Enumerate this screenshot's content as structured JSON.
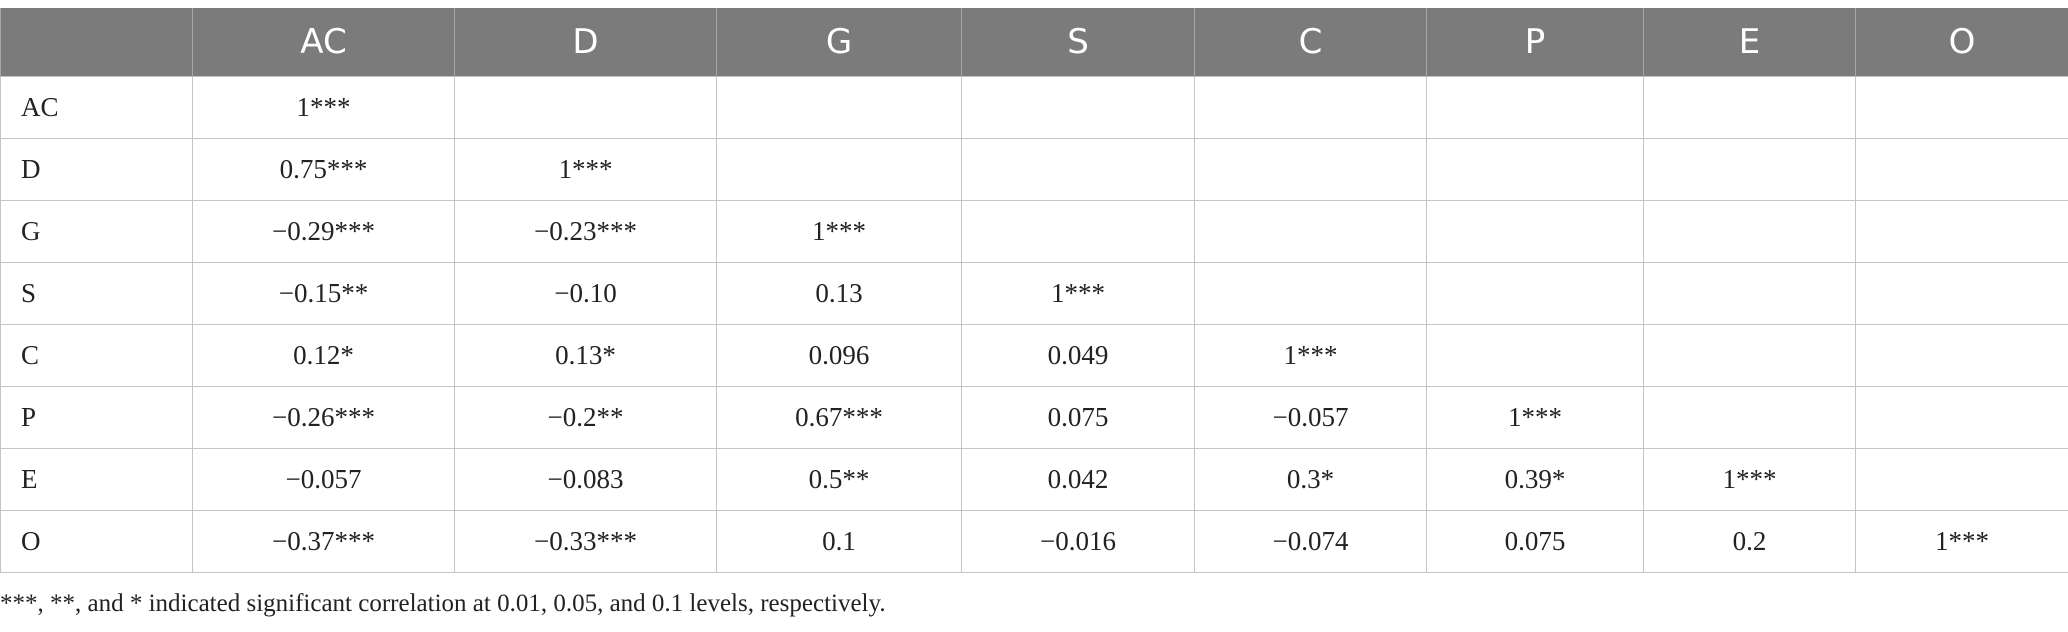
{
  "table": {
    "columns": [
      "",
      "AC",
      "D",
      "G",
      "S",
      "C",
      "P",
      "E",
      "O"
    ],
    "rows": [
      {
        "label": "AC",
        "cells": [
          "1***",
          "",
          "",
          "",
          "",
          "",
          "",
          ""
        ]
      },
      {
        "label": "D",
        "cells": [
          "0.75***",
          "1***",
          "",
          "",
          "",
          "",
          "",
          ""
        ]
      },
      {
        "label": "G",
        "cells": [
          "−0.29***",
          "−0.23***",
          "1***",
          "",
          "",
          "",
          "",
          ""
        ]
      },
      {
        "label": "S",
        "cells": [
          "−0.15**",
          "−0.10",
          "0.13",
          "1***",
          "",
          "",
          "",
          ""
        ]
      },
      {
        "label": "C",
        "cells": [
          "0.12*",
          "0.13*",
          "0.096",
          "0.049",
          "1***",
          "",
          "",
          ""
        ]
      },
      {
        "label": "P",
        "cells": [
          "−0.26***",
          "−0.2**",
          "0.67***",
          "0.075",
          "−0.057",
          "1***",
          "",
          ""
        ]
      },
      {
        "label": "E",
        "cells": [
          "−0.057",
          "−0.083",
          "0.5**",
          "0.042",
          "0.3*",
          "0.39*",
          "1***",
          ""
        ]
      },
      {
        "label": "O",
        "cells": [
          "−0.37***",
          "−0.33***",
          "0.1",
          "−0.016",
          "−0.074",
          "0.075",
          "0.2",
          "1***"
        ]
      }
    ]
  },
  "footnote": "***, **, and * indicated significant correlation at 0.01, 0.05, and 0.1 levels, respectively.",
  "colors": {
    "header_background": "#7b7b7b",
    "header_text": "#ffffff",
    "grid_line": "#c4c4c4"
  }
}
